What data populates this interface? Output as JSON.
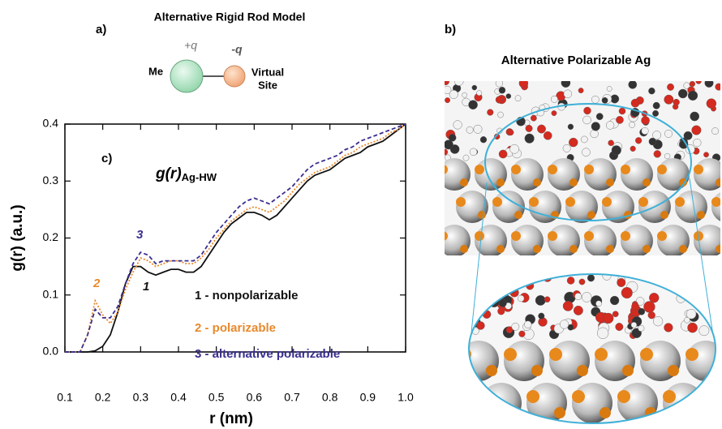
{
  "panel_a": {
    "label": "a)",
    "title": "Alternative Rigid Rod Model",
    "plus_charge": "+q",
    "minus_charge": "-q",
    "left_site": "Me",
    "right_site_lines": [
      "Virtual",
      "Site"
    ]
  },
  "panel_b": {
    "label": "b)",
    "title": "Alternative Polarizable Ag"
  },
  "chart_data": {
    "type": "line",
    "panel_label": "c)",
    "annotation": {
      "text": "g(r)",
      "subscript": "Ag-HW"
    },
    "x_label": "r (nm)",
    "y_label": "g(r) (a.u.)",
    "x": [
      0.1,
      0.12,
      0.14,
      0.16,
      0.18,
      0.2,
      0.22,
      0.24,
      0.26,
      0.28,
      0.3,
      0.32,
      0.34,
      0.36,
      0.38,
      0.4,
      0.42,
      0.44,
      0.46,
      0.48,
      0.5,
      0.52,
      0.54,
      0.56,
      0.58,
      0.6,
      0.62,
      0.64,
      0.66,
      0.68,
      0.7,
      0.72,
      0.74,
      0.76,
      0.78,
      0.8,
      0.82,
      0.84,
      0.86,
      0.88,
      0.9,
      0.92,
      0.94,
      0.96,
      0.98,
      1.0
    ],
    "series": [
      {
        "name": "1 - nonpolarizable",
        "curve_label": "1",
        "color": "#111111",
        "dash": "none",
        "values": [
          0,
          0,
          0,
          0,
          0.002,
          0.01,
          0.03,
          0.07,
          0.12,
          0.15,
          0.15,
          0.14,
          0.135,
          0.14,
          0.145,
          0.145,
          0.14,
          0.14,
          0.15,
          0.17,
          0.19,
          0.21,
          0.225,
          0.235,
          0.245,
          0.245,
          0.24,
          0.232,
          0.24,
          0.255,
          0.27,
          0.285,
          0.3,
          0.31,
          0.315,
          0.32,
          0.33,
          0.34,
          0.345,
          0.35,
          0.36,
          0.365,
          0.37,
          0.38,
          0.39,
          0.4
        ]
      },
      {
        "name": "2 - polarizable",
        "curve_label": "2",
        "color": "#e8892c",
        "dash": "2,2",
        "values": [
          0,
          0,
          0,
          0.03,
          0.09,
          0.065,
          0.05,
          0.07,
          0.11,
          0.14,
          0.165,
          0.16,
          0.15,
          0.155,
          0.16,
          0.16,
          0.155,
          0.155,
          0.165,
          0.18,
          0.2,
          0.215,
          0.23,
          0.24,
          0.25,
          0.255,
          0.25,
          0.245,
          0.255,
          0.265,
          0.28,
          0.295,
          0.305,
          0.315,
          0.32,
          0.325,
          0.335,
          0.345,
          0.35,
          0.36,
          0.365,
          0.37,
          0.375,
          0.385,
          0.39,
          0.4
        ]
      },
      {
        "name": "3 - alternative polarizable",
        "curve_label": "3",
        "color": "#3a2f8f",
        "dash": "5,3",
        "values": [
          0,
          0,
          0,
          0.03,
          0.075,
          0.06,
          0.06,
          0.08,
          0.12,
          0.155,
          0.175,
          0.17,
          0.155,
          0.16,
          0.16,
          0.16,
          0.16,
          0.16,
          0.17,
          0.19,
          0.21,
          0.225,
          0.24,
          0.255,
          0.265,
          0.27,
          0.265,
          0.26,
          0.27,
          0.28,
          0.29,
          0.305,
          0.32,
          0.33,
          0.335,
          0.34,
          0.345,
          0.355,
          0.36,
          0.37,
          0.375,
          0.38,
          0.385,
          0.39,
          0.395,
          0.4
        ]
      }
    ],
    "xlim": [
      0.1,
      1.0
    ],
    "xticks": [
      0.1,
      0.2,
      0.3,
      0.4,
      0.5,
      0.6,
      0.7,
      0.8,
      0.9,
      {
        "value": 1.0,
        "label": "1.0"
      }
    ],
    "ylim": [
      0,
      0.4
    ],
    "yticks": [
      {
        "value": 0,
        "label": "0.0"
      },
      0.1,
      0.2,
      0.3,
      0.4
    ]
  }
}
